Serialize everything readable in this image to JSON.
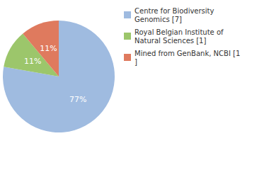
{
  "chart_data": {
    "type": "pie",
    "categories": [
      "Centre for Biodiversity Genomics [7]",
      "Royal Belgian Institute of Natural Sciences [1]",
      "Mined from GenBank, NCBI [1]"
    ],
    "values": [
      77,
      11,
      11
    ],
    "value_labels": [
      "77%",
      "11%",
      "11%"
    ],
    "colors": [
      "#9fbbe0",
      "#9cc66b",
      "#df7a5e"
    ],
    "data_labels": true,
    "legend": "top-right"
  }
}
